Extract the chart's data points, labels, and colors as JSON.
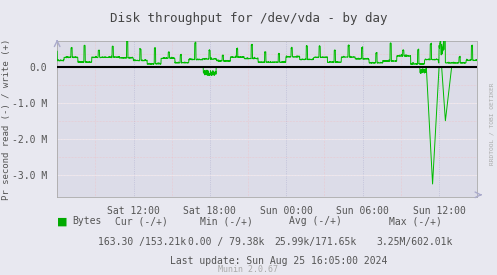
{
  "title": "Disk throughput for /dev/vda - by day",
  "ylabel": "Pr second read (-) / write (+)",
  "bg_color": "#e8e8f0",
  "plot_bg_color": "#dcdce8",
  "grid_color_white": "#ffffff",
  "grid_color_blue": "#aaaacc",
  "grid_color_red": "#ffaaaa",
  "line_color": "#00bb00",
  "zero_line_color": "#000000",
  "border_color": "#aaaaaa",
  "x_tick_labels": [
    "Sat 12:00",
    "Sat 18:00",
    "Sun 00:00",
    "Sun 06:00",
    "Sun 12:00"
  ],
  "ylim": [
    -3600000,
    700000
  ],
  "yticks": [
    0,
    -1000000,
    -2000000,
    -3000000
  ],
  "ytick_labels": [
    "0.0",
    "-1.0 M",
    "-2.0 M",
    "-3.0 M"
  ],
  "legend_label": "Bytes",
  "legend_color": "#00aa00",
  "cur_label": "Cur (-/+)",
  "min_label": "Min (-/+)",
  "avg_label": "Avg (-/+)",
  "max_label": "Max (-/+)",
  "cur_val": "163.30 /153.21k",
  "min_val": "0.00 / 79.38k",
  "avg_val": "25.99k/171.65k",
  "max_val": "3.25M/602.01k",
  "last_update": "Last update: Sun Aug 25 16:05:00 2024",
  "munin_version": "Munin 2.0.67",
  "rrdtool_label": "RRDTOOL / TOBI OETIKER",
  "font_color": "#555555",
  "title_color": "#444444"
}
